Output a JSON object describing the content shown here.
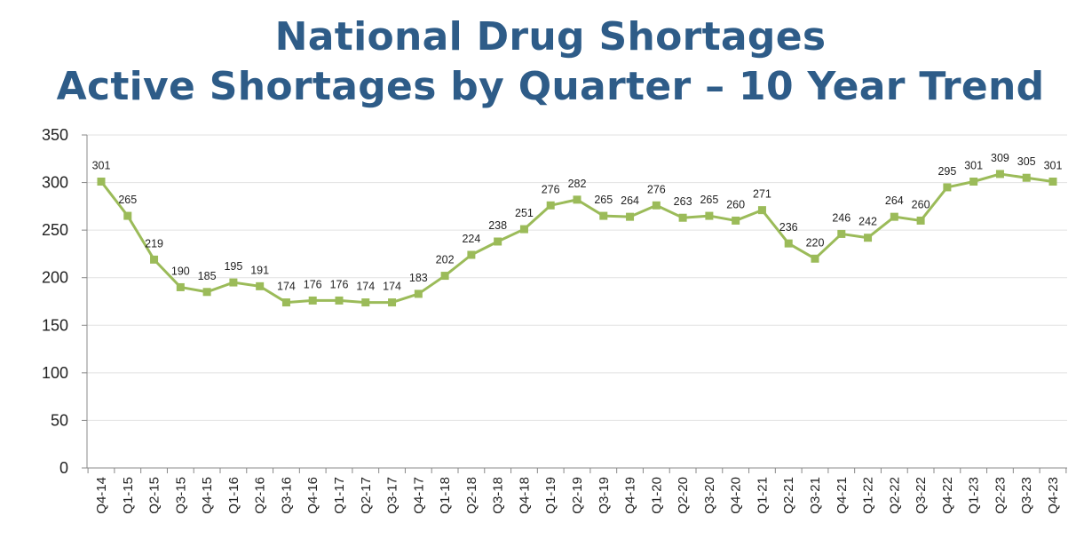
{
  "chart_data": {
    "type": "line",
    "title": "National Drug Shortages",
    "subtitle": "Active Shortages by Quarter – 10 Year Trend",
    "xlabel": "",
    "ylabel": "",
    "ylim": [
      0,
      350
    ],
    "yticks": [
      "0",
      "50",
      "100",
      "150",
      "200",
      "250",
      "300",
      "350"
    ],
    "grid": true,
    "legend": "none",
    "series_color": "#9bbb59",
    "categories": [
      "Q4-14",
      "Q1-15",
      "Q2-15",
      "Q3-15",
      "Q4-15",
      "Q1-16",
      "Q2-16",
      "Q3-16",
      "Q4-16",
      "Q1-17",
      "Q2-17",
      "Q3-17",
      "Q4-17",
      "Q1-18",
      "Q2-18",
      "Q3-18",
      "Q4-18",
      "Q1-19",
      "Q2-19",
      "Q3-19",
      "Q4-19",
      "Q1-20",
      "Q2-20",
      "Q3-20",
      "Q4-20",
      "Q1-21",
      "Q2-21",
      "Q3-21",
      "Q4-21",
      "Q1-22",
      "Q2-22",
      "Q3-22",
      "Q4-22",
      "Q1-23",
      "Q2-23",
      "Q3-23",
      "Q4-23"
    ],
    "values": [
      301,
      265,
      219,
      190,
      185,
      195,
      191,
      174,
      176,
      176,
      174,
      174,
      183,
      202,
      224,
      238,
      251,
      276,
      282,
      265,
      264,
      276,
      263,
      265,
      260,
      271,
      236,
      220,
      246,
      242,
      264,
      260,
      295,
      301,
      309,
      305,
      301
    ]
  }
}
